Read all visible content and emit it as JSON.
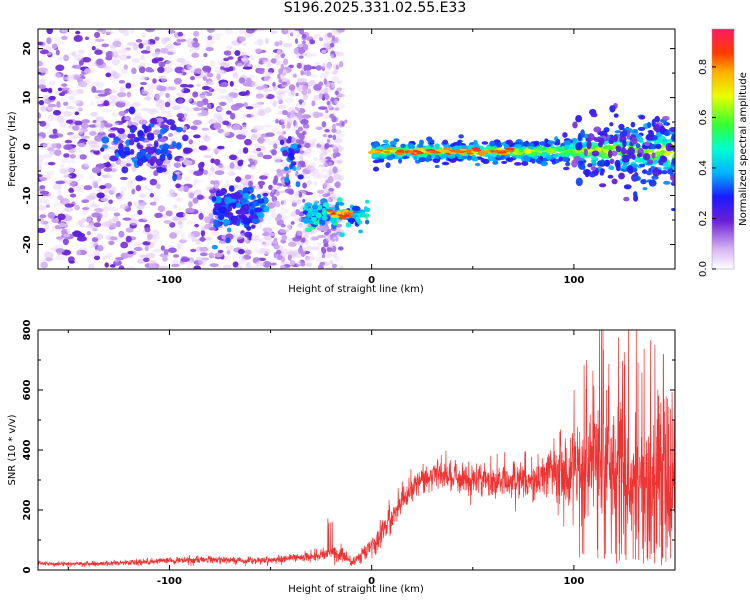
{
  "title": "S196.2025.331.02.55.E33",
  "chart_data": [
    {
      "type": "heatmap",
      "xlabel": "Height of straight line (km)",
      "ylabel": "Frequency (Hz)",
      "xlim": [
        -165,
        150
      ],
      "ylim": [
        -25,
        24
      ],
      "xticks": [
        -100,
        0,
        100
      ],
      "yticks": [
        -20,
        -10,
        0,
        10,
        20
      ],
      "colorbar": {
        "label": "Normalized spectral amplitude",
        "range": [
          0.0,
          0.95
        ],
        "ticks": [
          0.0,
          0.2,
          0.4,
          0.6,
          0.8
        ]
      },
      "features": [
        {
          "x_range": [
            -165,
            -15
          ],
          "freq": "scattered",
          "amplitude": "low"
        },
        {
          "x_range": [
            -78,
            -52
          ],
          "freq_center": -13,
          "amplitude": "medium"
        },
        {
          "x_range": [
            -33,
            -2
          ],
          "freq_center": -14,
          "amplitude": "high"
        },
        {
          "x_range": [
            0,
            150
          ],
          "freq_center": -1,
          "amplitude": "high"
        }
      ]
    },
    {
      "type": "line",
      "xlabel": "Height of straight line (km)",
      "ylabel": "SNR (10 * v/v)",
      "xlim": [
        -165,
        150
      ],
      "ylim": [
        0,
        800
      ],
      "xticks": [
        -100,
        0,
        100
      ],
      "yticks": [
        0,
        200,
        400,
        600,
        800
      ],
      "series": [
        {
          "color": "#ee3333",
          "x": [
            -165,
            -140,
            -120,
            -100,
            -80,
            -60,
            -40,
            -20,
            -15,
            -10,
            -5,
            0,
            10,
            20,
            30,
            40,
            60,
            80,
            100,
            110,
            120,
            130,
            140,
            150
          ],
          "values": [
            22,
            20,
            25,
            30,
            35,
            30,
            38,
            55,
            50,
            25,
            45,
            80,
            180,
            280,
            320,
            310,
            300,
            310,
            340,
            360,
            340,
            330,
            320,
            310
          ]
        }
      ]
    }
  ],
  "colors": {
    "line": "#ee3333",
    "axes": "#000000"
  }
}
